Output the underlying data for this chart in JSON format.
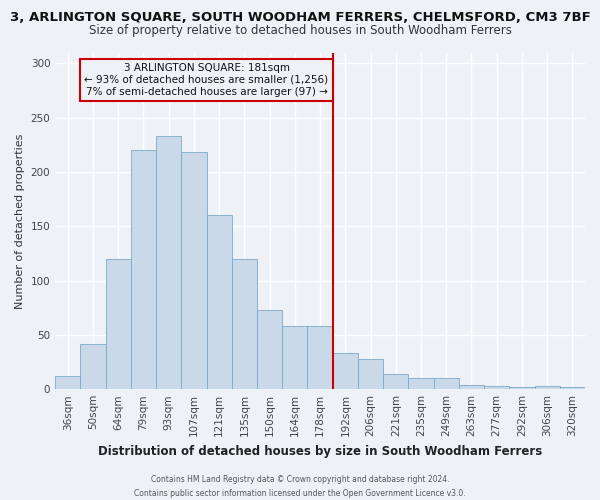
{
  "title": "3, ARLINGTON SQUARE, SOUTH WOODHAM FERRERS, CHELMSFORD, CM3 7BF",
  "subtitle": "Size of property relative to detached houses in South Woodham Ferrers",
  "xlabel": "Distribution of detached houses by size in South Woodham Ferrers",
  "ylabel": "Number of detached properties",
  "footer_line1": "Contains HM Land Registry data © Crown copyright and database right 2024.",
  "footer_line2": "Contains public sector information licensed under the Open Government Licence v3.0.",
  "bar_labels": [
    "36sqm",
    "50sqm",
    "64sqm",
    "79sqm",
    "93sqm",
    "107sqm",
    "121sqm",
    "135sqm",
    "150sqm",
    "164sqm",
    "178sqm",
    "192sqm",
    "206sqm",
    "221sqm",
    "235sqm",
    "249sqm",
    "263sqm",
    "277sqm",
    "292sqm",
    "306sqm",
    "320sqm"
  ],
  "bar_values": [
    12,
    42,
    120,
    220,
    233,
    218,
    160,
    120,
    73,
    58,
    58,
    33,
    28,
    14,
    10,
    10,
    4,
    3,
    2,
    3,
    2
  ],
  "bar_color": "#c9d9e9",
  "bar_edge_color": "#7aaac8",
  "ylim": [
    0,
    310
  ],
  "yticks": [
    0,
    50,
    100,
    150,
    200,
    250,
    300
  ],
  "vline_bar_index": 10,
  "vline_color": "#cc0000",
  "annotation_title": "3 ARLINGTON SQUARE: 181sqm",
  "annotation_line1": "← 93% of detached houses are smaller (1,256)",
  "annotation_line2": "7% of semi-detached houses are larger (97) →",
  "annotation_box_edge": "#cc0000",
  "bg_color": "#eef2f7",
  "grid_color": "#ffffff",
  "title_fontsize": 9.5,
  "subtitle_fontsize": 8.5,
  "ylabel_fontsize": 8,
  "xlabel_fontsize": 8.5,
  "tick_fontsize": 7.5,
  "annotation_fontsize": 7.5,
  "footer_fontsize": 5.5
}
